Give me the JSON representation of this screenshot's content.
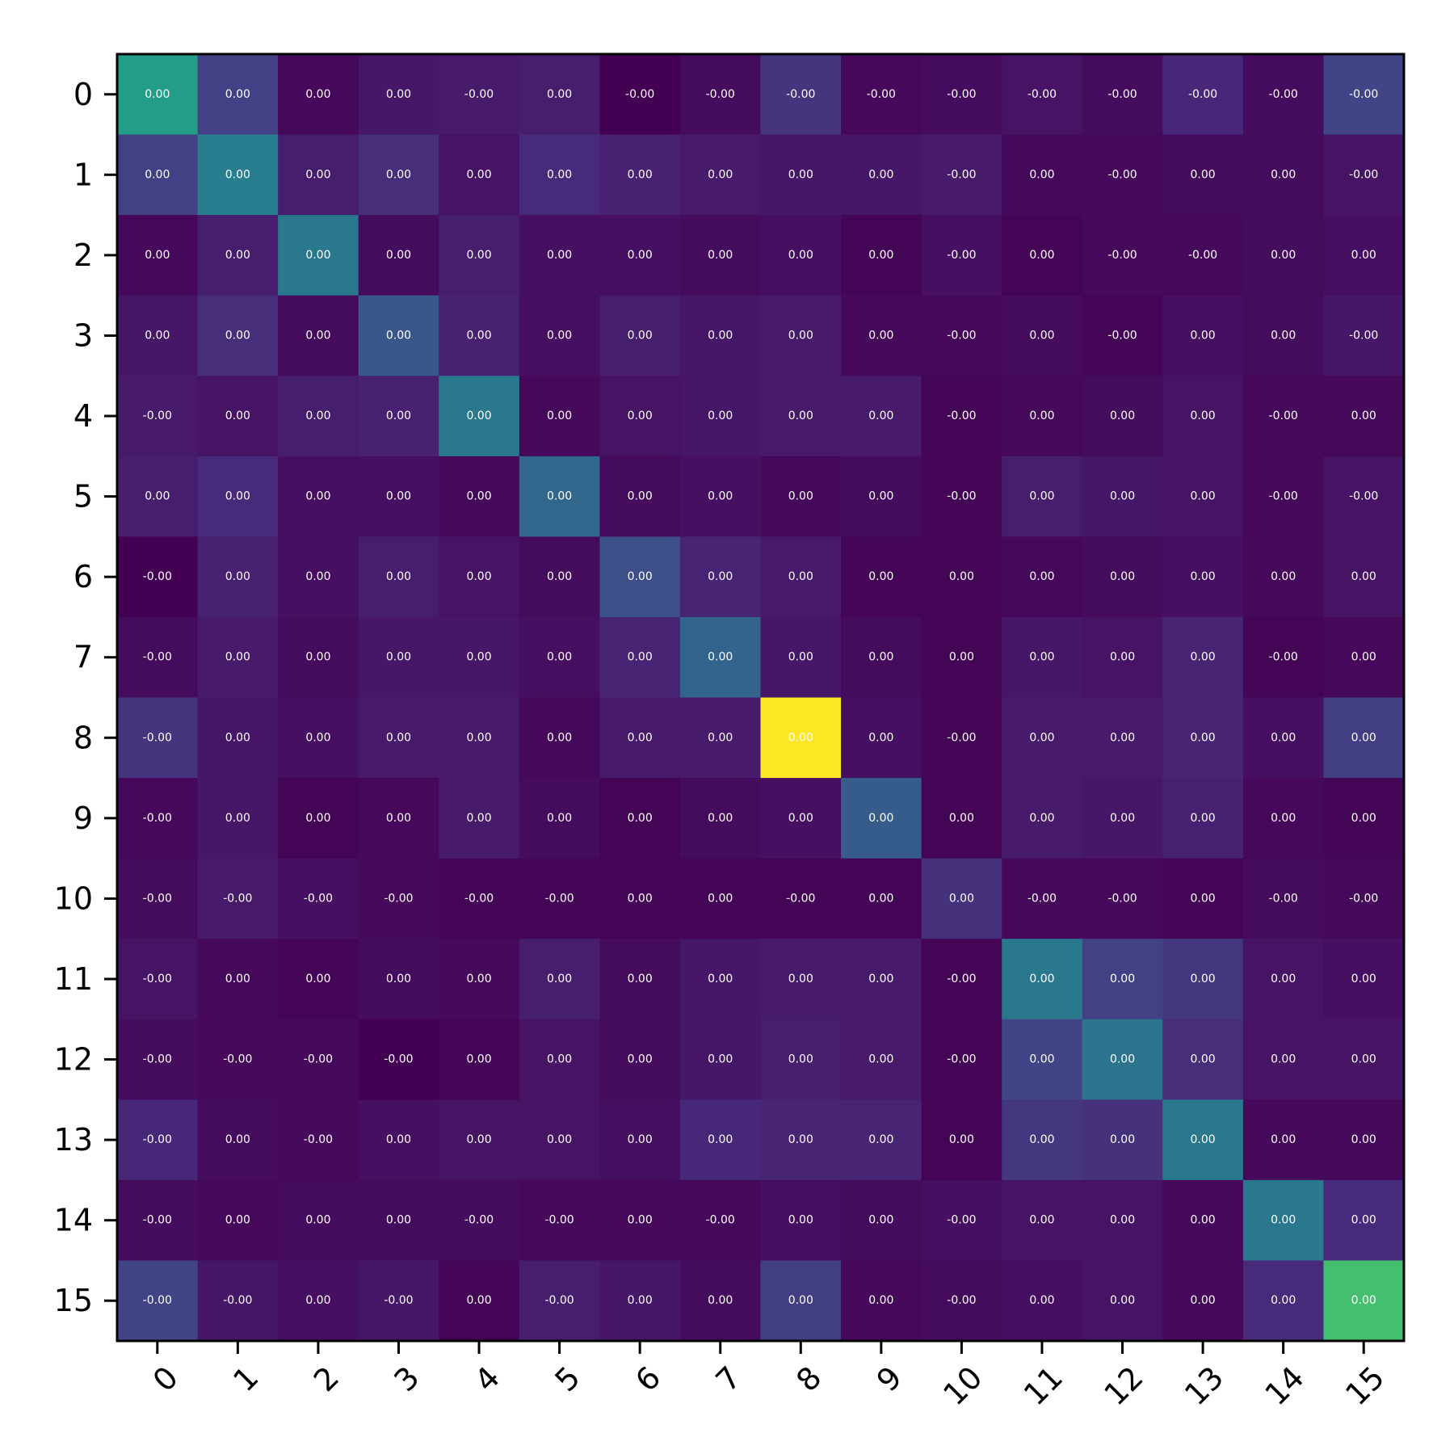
{
  "chart_data": {
    "type": "heatmap",
    "title": "",
    "xlabel": "",
    "ylabel": "",
    "colormap": "viridis",
    "colorbar": false,
    "x_ticks": [
      "0",
      "1",
      "2",
      "3",
      "4",
      "5",
      "6",
      "7",
      "8",
      "9",
      "10",
      "11",
      "12",
      "13",
      "14",
      "15"
    ],
    "y_ticks": [
      "0",
      "1",
      "2",
      "3",
      "4",
      "5",
      "6",
      "7",
      "8",
      "9",
      "10",
      "11",
      "12",
      "13",
      "14",
      "15"
    ],
    "annotation_labels": [
      [
        "0.00",
        "0.00",
        "0.00",
        "0.00",
        "-0.00",
        "0.00",
        "-0.00",
        "-0.00",
        "-0.00",
        "-0.00",
        "-0.00",
        "-0.00",
        "-0.00",
        "-0.00",
        "-0.00",
        "-0.00"
      ],
      [
        "0.00",
        "0.00",
        "0.00",
        "0.00",
        "0.00",
        "0.00",
        "0.00",
        "0.00",
        "0.00",
        "0.00",
        "-0.00",
        "0.00",
        "-0.00",
        "0.00",
        "0.00",
        "-0.00"
      ],
      [
        "0.00",
        "0.00",
        "0.00",
        "0.00",
        "0.00",
        "0.00",
        "0.00",
        "0.00",
        "0.00",
        "0.00",
        "-0.00",
        "0.00",
        "-0.00",
        "-0.00",
        "0.00",
        "0.00"
      ],
      [
        "0.00",
        "0.00",
        "0.00",
        "0.00",
        "0.00",
        "0.00",
        "0.00",
        "0.00",
        "0.00",
        "0.00",
        "-0.00",
        "0.00",
        "-0.00",
        "0.00",
        "0.00",
        "-0.00"
      ],
      [
        "-0.00",
        "0.00",
        "0.00",
        "0.00",
        "0.00",
        "0.00",
        "0.00",
        "0.00",
        "0.00",
        "0.00",
        "-0.00",
        "0.00",
        "0.00",
        "0.00",
        "-0.00",
        "0.00"
      ],
      [
        "0.00",
        "0.00",
        "0.00",
        "0.00",
        "0.00",
        "0.00",
        "0.00",
        "0.00",
        "0.00",
        "0.00",
        "-0.00",
        "0.00",
        "0.00",
        "0.00",
        "-0.00",
        "-0.00"
      ],
      [
        "-0.00",
        "0.00",
        "0.00",
        "0.00",
        "0.00",
        "0.00",
        "0.00",
        "0.00",
        "0.00",
        "0.00",
        "0.00",
        "0.00",
        "0.00",
        "0.00",
        "0.00",
        "0.00"
      ],
      [
        "-0.00",
        "0.00",
        "0.00",
        "0.00",
        "0.00",
        "0.00",
        "0.00",
        "0.00",
        "0.00",
        "0.00",
        "0.00",
        "0.00",
        "0.00",
        "0.00",
        "-0.00",
        "0.00"
      ],
      [
        "-0.00",
        "0.00",
        "0.00",
        "0.00",
        "0.00",
        "0.00",
        "0.00",
        "0.00",
        "0.00",
        "0.00",
        "-0.00",
        "0.00",
        "0.00",
        "0.00",
        "0.00",
        "0.00"
      ],
      [
        "-0.00",
        "0.00",
        "0.00",
        "0.00",
        "0.00",
        "0.00",
        "0.00",
        "0.00",
        "0.00",
        "0.00",
        "0.00",
        "0.00",
        "0.00",
        "0.00",
        "0.00",
        "0.00"
      ],
      [
        "-0.00",
        "-0.00",
        "-0.00",
        "-0.00",
        "-0.00",
        "-0.00",
        "0.00",
        "0.00",
        "-0.00",
        "0.00",
        "0.00",
        "-0.00",
        "-0.00",
        "0.00",
        "-0.00",
        "-0.00"
      ],
      [
        "-0.00",
        "0.00",
        "0.00",
        "0.00",
        "0.00",
        "0.00",
        "0.00",
        "0.00",
        "0.00",
        "0.00",
        "-0.00",
        "0.00",
        "0.00",
        "0.00",
        "0.00",
        "0.00"
      ],
      [
        "-0.00",
        "-0.00",
        "-0.00",
        "-0.00",
        "0.00",
        "0.00",
        "0.00",
        "0.00",
        "0.00",
        "0.00",
        "-0.00",
        "0.00",
        "0.00",
        "0.00",
        "0.00",
        "0.00"
      ],
      [
        "-0.00",
        "0.00",
        "-0.00",
        "0.00",
        "0.00",
        "0.00",
        "0.00",
        "0.00",
        "0.00",
        "0.00",
        "0.00",
        "0.00",
        "0.00",
        "0.00",
        "0.00",
        "0.00"
      ],
      [
        "-0.00",
        "0.00",
        "0.00",
        "0.00",
        "-0.00",
        "-0.00",
        "0.00",
        "-0.00",
        "0.00",
        "0.00",
        "-0.00",
        "0.00",
        "0.00",
        "0.00",
        "0.00",
        "0.00"
      ],
      [
        "-0.00",
        "-0.00",
        "0.00",
        "-0.00",
        "0.00",
        "-0.00",
        "0.00",
        "0.00",
        "0.00",
        "0.00",
        "-0.00",
        "0.00",
        "0.00",
        "0.00",
        "0.00",
        "0.00"
      ]
    ],
    "color_intensity": [
      [
        0.55,
        0.19,
        0.02,
        0.06,
        0.07,
        0.08,
        0.0,
        0.03,
        0.15,
        0.02,
        0.03,
        0.05,
        0.03,
        0.11,
        0.03,
        0.2
      ],
      [
        0.19,
        0.42,
        0.08,
        0.13,
        0.05,
        0.12,
        0.09,
        0.07,
        0.06,
        0.06,
        0.07,
        0.02,
        0.02,
        0.03,
        0.03,
        0.05
      ],
      [
        0.02,
        0.08,
        0.4,
        0.03,
        0.08,
        0.04,
        0.04,
        0.03,
        0.04,
        0.01,
        0.04,
        0.01,
        0.02,
        0.02,
        0.03,
        0.04
      ],
      [
        0.06,
        0.13,
        0.03,
        0.27,
        0.09,
        0.04,
        0.08,
        0.06,
        0.07,
        0.02,
        0.02,
        0.03,
        0.01,
        0.04,
        0.03,
        0.06
      ],
      [
        0.07,
        0.05,
        0.08,
        0.09,
        0.4,
        0.02,
        0.05,
        0.06,
        0.07,
        0.07,
        0.01,
        0.02,
        0.03,
        0.05,
        0.02,
        0.02
      ],
      [
        0.08,
        0.12,
        0.04,
        0.04,
        0.02,
        0.33,
        0.03,
        0.04,
        0.02,
        0.03,
        0.01,
        0.08,
        0.06,
        0.05,
        0.02,
        0.05
      ],
      [
        0.0,
        0.09,
        0.04,
        0.08,
        0.05,
        0.03,
        0.24,
        0.1,
        0.07,
        0.01,
        0.01,
        0.02,
        0.03,
        0.04,
        0.02,
        0.05
      ],
      [
        0.03,
        0.07,
        0.03,
        0.06,
        0.06,
        0.04,
        0.1,
        0.32,
        0.06,
        0.03,
        0.01,
        0.06,
        0.05,
        0.1,
        0.01,
        0.02
      ],
      [
        0.15,
        0.06,
        0.04,
        0.07,
        0.07,
        0.02,
        0.07,
        0.07,
        1.0,
        0.04,
        0.01,
        0.07,
        0.07,
        0.1,
        0.04,
        0.18
      ],
      [
        0.02,
        0.06,
        0.01,
        0.02,
        0.07,
        0.03,
        0.01,
        0.03,
        0.04,
        0.29,
        0.01,
        0.07,
        0.06,
        0.09,
        0.02,
        0.01
      ],
      [
        0.03,
        0.07,
        0.04,
        0.02,
        0.01,
        0.01,
        0.01,
        0.01,
        0.01,
        0.01,
        0.14,
        0.02,
        0.02,
        0.01,
        0.03,
        0.02
      ],
      [
        0.05,
        0.02,
        0.01,
        0.03,
        0.02,
        0.08,
        0.03,
        0.06,
        0.07,
        0.07,
        0.01,
        0.4,
        0.19,
        0.16,
        0.05,
        0.04
      ],
      [
        0.03,
        0.02,
        0.02,
        0.0,
        0.01,
        0.05,
        0.03,
        0.06,
        0.08,
        0.07,
        0.01,
        0.2,
        0.38,
        0.13,
        0.05,
        0.05
      ],
      [
        0.11,
        0.03,
        0.02,
        0.04,
        0.05,
        0.05,
        0.04,
        0.11,
        0.1,
        0.1,
        0.01,
        0.16,
        0.14,
        0.4,
        0.02,
        0.02
      ],
      [
        0.03,
        0.02,
        0.03,
        0.03,
        0.03,
        0.02,
        0.02,
        0.02,
        0.04,
        0.03,
        0.04,
        0.05,
        0.05,
        0.02,
        0.4,
        0.12
      ],
      [
        0.2,
        0.06,
        0.04,
        0.06,
        0.01,
        0.08,
        0.06,
        0.03,
        0.18,
        0.02,
        0.03,
        0.04,
        0.05,
        0.02,
        0.12,
        0.7
      ]
    ]
  }
}
